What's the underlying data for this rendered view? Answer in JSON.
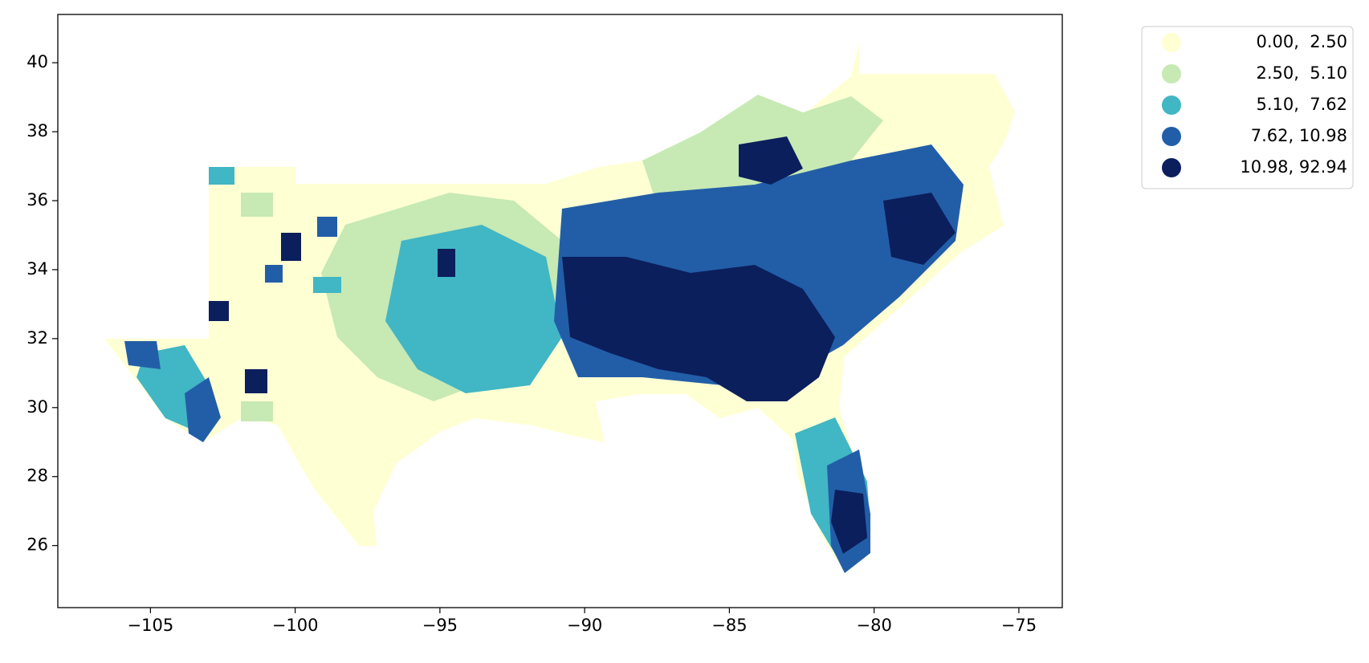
{
  "chart_data": {
    "type": "choropleth",
    "xlim": [
      -108.2,
      -73.5
    ],
    "ylim": [
      24.2,
      41.4
    ],
    "xticks": [
      {
        "value": -105,
        "label": "−105"
      },
      {
        "value": -100,
        "label": "−100"
      },
      {
        "value": -95,
        "label": "−95"
      },
      {
        "value": -90,
        "label": "−90"
      },
      {
        "value": -85,
        "label": "−85"
      },
      {
        "value": -80,
        "label": "−80"
      },
      {
        "value": -75,
        "label": "−75"
      }
    ],
    "yticks": [
      26,
      28,
      30,
      32,
      34,
      36,
      38,
      40
    ],
    "legend": "upper right outside",
    "classes": [
      {
        "name": "0.00,  2.50",
        "color": "#ffffd4"
      },
      {
        "name": "2.50,  5.10",
        "color": "#c7e9b4"
      },
      {
        "name": "5.10,  7.62",
        "color": "#41b6c4"
      },
      {
        "name": "7.62, 10.98",
        "color": "#225ea8"
      },
      {
        "name": "10.98, 92.94",
        "color": "#0b1f5c"
      }
    ]
  }
}
